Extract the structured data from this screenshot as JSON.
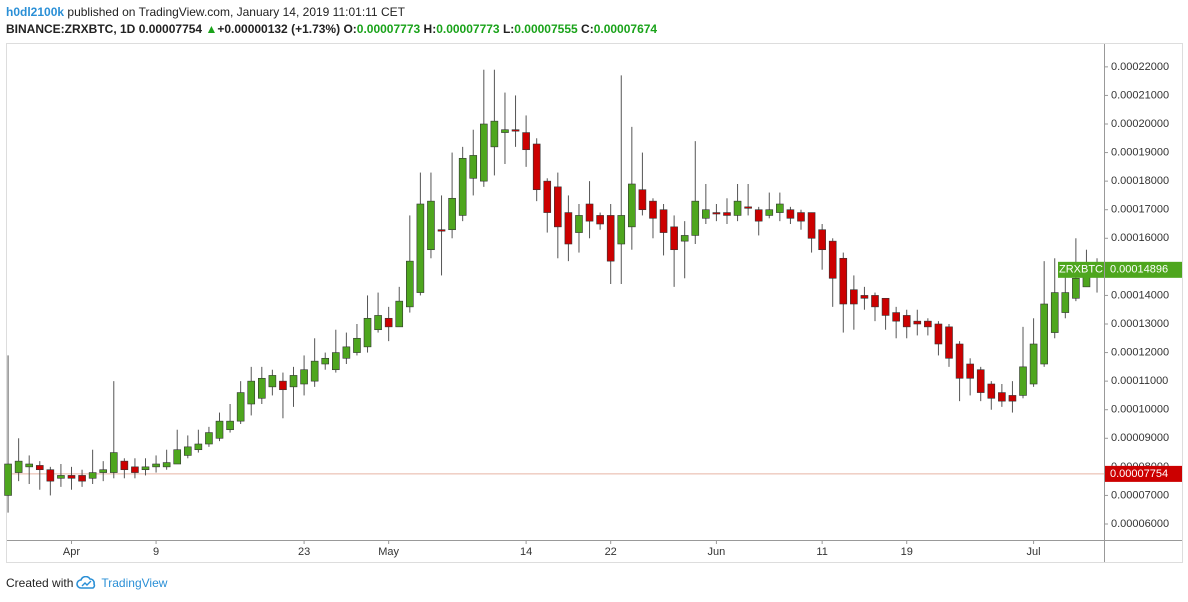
{
  "header": {
    "author": "h0dl2100k",
    "published": "published on TradingView.com, January 14, 2019 11:01:11 CET",
    "symbol": "BINANCE:ZRXBTC, 1D",
    "price": "0.00007754",
    "arrow": "▲",
    "change": "+0.00000132 (+1.73%)",
    "o_label": "O:",
    "o": "0.00007773",
    "h_label": "H:",
    "h": "0.00007773",
    "l_label": "L:",
    "l": "0.00007555",
    "c_label": "C:",
    "c": "0.00007674"
  },
  "chart_data": {
    "type": "candlestick",
    "symbol": "ZRXBTC",
    "up_color": "#4ea61e",
    "down_color": "#cc0000",
    "open": [
      7e-05,
      7.8e-05,
      8e-05,
      8.05e-05,
      7.9e-05,
      7.6e-05,
      7.7e-05,
      7.7e-05,
      7.6e-05,
      7.8e-05,
      7.8e-05,
      8.2e-05,
      8e-05,
      7.9e-05,
      8e-05,
      8e-05,
      8.1e-05,
      8.4e-05,
      8.6e-05,
      8.8e-05,
      9e-05,
      9.3e-05,
      9.6e-05,
      0.000102,
      0.000104,
      0.000108,
      0.00011,
      0.000108,
      0.000109,
      0.00011,
      0.000116,
      0.000114,
      0.000118,
      0.00012,
      0.000122,
      0.000128,
      0.000132,
      0.000129,
      0.000136,
      0.000141,
      0.000156,
      0.000163,
      0.000163,
      0.000168,
      0.000181,
      0.00018,
      0.000192,
      0.000197,
      0.000198,
      0.000197,
      0.000193,
      0.00018,
      0.000178,
      0.000169,
      0.000162,
      0.000172,
      0.000168,
      0.000168,
      0.000158,
      0.000164,
      0.000177,
      0.000173,
      0.00017,
      0.000164,
      0.000159,
      0.000161,
      0.000167,
      0.000169,
      0.000169,
      0.000168,
      0.000171,
      0.00017,
      0.000168,
      0.000169,
      0.00017,
      0.000169,
      0.000169,
      0.000163,
      0.000159,
      0.000153,
      0.000142,
      0.00014,
      0.00014,
      0.000139,
      0.000134,
      0.000133,
      0.000131,
      0.000131,
      0.00013,
      0.000129,
      0.000123,
      0.000116,
      0.000114,
      0.000109,
      0.000106,
      0.000105,
      0.000105,
      0.000109,
      0.000116,
      0.000127,
      0.000134,
      0.000139,
      0.000143,
      0.000148
    ],
    "high": [
      0.000119,
      9e-05,
      8.4e-05,
      8.2e-05,
      8e-05,
      8.1e-05,
      8e-05,
      7.9e-05,
      8.6e-05,
      8.2e-05,
      0.00011,
      8.3e-05,
      8.3e-05,
      8.3e-05,
      8.4e-05,
      8.6e-05,
      9.3e-05,
      9.1e-05,
      9.3e-05,
      9.4e-05,
      9.9e-05,
      0.000102,
      0.00011,
      0.000115,
      0.000115,
      0.000114,
      0.000113,
      0.000115,
      0.000119,
      0.000125,
      0.00012,
      0.000128,
      0.000127,
      0.00013,
      0.00014,
      0.000141,
      0.000136,
      0.000143,
      0.000168,
      0.000183,
      0.000183,
      0.000175,
      0.00019,
      0.000192,
      0.000198,
      0.000219,
      0.000219,
      0.000211,
      0.00021,
      0.000203,
      0.000195,
      0.000181,
      0.000183,
      0.000175,
      0.000172,
      0.00018,
      0.000169,
      0.000172,
      0.000217,
      0.000199,
      0.00019,
      0.000174,
      0.000172,
      0.000168,
      0.000166,
      0.000194,
      0.000179,
      0.000172,
      0.000174,
      0.000179,
      0.000179,
      0.000171,
      0.000176,
      0.000176,
      0.000171,
      0.00017,
      0.000169,
      0.000165,
      0.00016,
      0.000155,
      0.000147,
      0.000143,
      0.000141,
      0.000139,
      0.000136,
      0.000135,
      0.000135,
      0.000132,
      0.000131,
      0.00013,
      0.000124,
      0.000118,
      0.000115,
      0.00011,
      0.000109,
      0.00011,
      0.000129,
      0.000132,
      0.000152,
      0.000153,
      0.00015,
      0.00016,
      0.000156,
      0.000153
    ],
    "low": [
      6.4e-05,
      7.5e-05,
      7.4e-05,
      7.2e-05,
      7e-05,
      7.3e-05,
      7.2e-05,
      7.3e-05,
      7.4e-05,
      7.5e-05,
      7.6e-05,
      7.6e-05,
      7.6e-05,
      7.7e-05,
      7.8e-05,
      7.9e-05,
      8.1e-05,
      8.3e-05,
      8.5e-05,
      8.7e-05,
      8.9e-05,
      9.2e-05,
      9.5e-05,
      9.8e-05,
      0.000102,
      0.000105,
      9.7e-05,
      0.000101,
      0.000105,
      0.000108,
      0.000114,
      0.000113,
      0.000116,
      0.000119,
      0.00012,
      0.000127,
      0.000124,
      0.000129,
      0.000134,
      0.00014,
      0.000153,
      0.000147,
      0.00016,
      0.000166,
      0.000175,
      0.000178,
      0.000182,
      0.000186,
      0.000192,
      0.000185,
      0.000173,
      0.000162,
      0.000153,
      0.000152,
      0.000155,
      0.00016,
      0.000163,
      0.000144,
      0.000144,
      0.000156,
      0.000168,
      0.00016,
      0.000154,
      0.000143,
      0.000146,
      0.000158,
      0.000165,
      0.000166,
      0.000165,
      0.000166,
      0.000168,
      0.000161,
      0.000167,
      0.000166,
      0.000165,
      0.000163,
      0.000155,
      0.000149,
      0.000136,
      0.000127,
      0.000128,
      0.000135,
      0.000131,
      0.000128,
      0.000125,
      0.000125,
      0.000126,
      0.000126,
      0.000119,
      0.000115,
      0.000103,
      0.000105,
      0.000103,
      0.0001,
      0.000101,
      9.9e-05,
      0.000104,
      0.000108,
      0.000115,
      0.000125,
      0.000132,
      0.000138,
      0.000143,
      0.000141
    ],
    "close": [
      8.1e-05,
      8.2e-05,
      8.1e-05,
      7.9e-05,
      7.5e-05,
      7.7e-05,
      7.6e-05,
      7.5e-05,
      7.8e-05,
      7.9e-05,
      8.5e-05,
      7.9e-05,
      7.8e-05,
      8e-05,
      8.1e-05,
      8.15e-05,
      8.6e-05,
      8.7e-05,
      8.8e-05,
      9.2e-05,
      9.6e-05,
      9.6e-05,
      0.000106,
      0.00011,
      0.000111,
      0.000112,
      0.000107,
      0.000112,
      0.000114,
      0.000117,
      0.000118,
      0.00012,
      0.000122,
      0.000125,
      0.000132,
      0.000133,
      0.000129,
      0.000138,
      0.000152,
      0.000172,
      0.000173,
      0.0001625,
      0.000174,
      0.000188,
      0.000189,
      0.0002,
      0.000201,
      0.000198,
      0.0001975,
      0.000191,
      0.000177,
      0.000169,
      0.000164,
      0.000158,
      0.000168,
      0.000166,
      0.000165,
      0.000152,
      0.000168,
      0.000179,
      0.00017,
      0.000167,
      0.000162,
      0.000156,
      0.000161,
      0.000173,
      0.00017,
      0.0001685,
      0.000168,
      0.000173,
      0.0001705,
      0.000166,
      0.00017,
      0.000172,
      0.000167,
      0.000166,
      0.00016,
      0.000156,
      0.000146,
      0.000137,
      0.000137,
      0.000139,
      0.000136,
      0.000133,
      0.000131,
      0.000129,
      0.00013,
      0.000129,
      0.000123,
      0.000118,
      0.000111,
      0.000111,
      0.000106,
      0.000104,
      0.000103,
      0.000103,
      0.000115,
      0.000123,
      0.000137,
      0.000141,
      0.000141,
      0.000146,
      0.000149,
      0.00014896
    ],
    "price_line": 7.754e-05,
    "ylim": [
      5.44e-05,
      0.000228
    ],
    "yticks": [
      {
        "value": 6e-05,
        "label": "0.00006000"
      },
      {
        "value": 7e-05,
        "label": "0.00007000"
      },
      {
        "value": 8e-05,
        "label": "0.00008000"
      },
      {
        "value": 9e-05,
        "label": "0.00009000"
      },
      {
        "value": 0.0001,
        "label": "0.00010000"
      },
      {
        "value": 0.00011,
        "label": "0.00011000"
      },
      {
        "value": 0.00012,
        "label": "0.00012000"
      },
      {
        "value": 0.00013,
        "label": "0.00013000"
      },
      {
        "value": 0.00014,
        "label": "0.00014000"
      },
      {
        "value": 0.00015,
        "label": "0.00015000"
      },
      {
        "value": 0.00016,
        "label": "0.00016000"
      },
      {
        "value": 0.00017,
        "label": "0.00017000"
      },
      {
        "value": 0.00018,
        "label": "0.00018000"
      },
      {
        "value": 0.00019,
        "label": "0.00019000"
      },
      {
        "value": 0.0002,
        "label": "0.00020000"
      },
      {
        "value": 0.00021,
        "label": "0.00021000"
      },
      {
        "value": 0.00022,
        "label": "0.00022000"
      }
    ],
    "xlim": [
      -0.1,
      103.66
    ],
    "xticks": [
      {
        "value": 6,
        "label": "Apr"
      },
      {
        "value": 14,
        "label": "9"
      },
      {
        "value": 28,
        "label": "23"
      },
      {
        "value": 36,
        "label": "May"
      },
      {
        "value": 49,
        "label": "14"
      },
      {
        "value": 57,
        "label": "22"
      },
      {
        "value": 67,
        "label": "Jun"
      },
      {
        "value": 77,
        "label": "11"
      },
      {
        "value": 85,
        "label": "19"
      },
      {
        "value": 97,
        "label": "Jul"
      }
    ]
  },
  "footer": {
    "created": "Created with",
    "brand": "TradingView"
  }
}
